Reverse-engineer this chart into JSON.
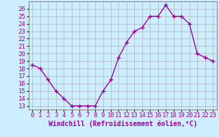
{
  "hours": [
    0,
    1,
    2,
    3,
    4,
    5,
    6,
    7,
    8,
    9,
    10,
    11,
    12,
    13,
    14,
    15,
    16,
    17,
    18,
    19,
    20,
    21,
    22,
    23
  ],
  "values": [
    18.5,
    18.0,
    16.5,
    15.0,
    14.0,
    13.0,
    13.0,
    13.0,
    13.0,
    15.0,
    16.5,
    19.5,
    21.5,
    23.0,
    23.5,
    25.0,
    25.0,
    26.5,
    25.0,
    25.0,
    24.0,
    20.0,
    19.5,
    19.0
  ],
  "line_color": "#990099",
  "marker": "+",
  "markersize": 4,
  "linewidth": 1.0,
  "background_color": "#cceeff",
  "grid_color": "#b0b0b0",
  "xlabel": "Windchill (Refroidissement éolien,°C)",
  "xlabel_fontsize": 7,
  "tick_fontsize": 6.5,
  "ylim_min": 12.5,
  "ylim_max": 27.0,
  "xlim_min": -0.5,
  "xlim_max": 23.5,
  "yticks": [
    13,
    14,
    15,
    16,
    17,
    18,
    19,
    20,
    21,
    22,
    23,
    24,
    25,
    26
  ],
  "xticks": [
    0,
    1,
    2,
    3,
    4,
    5,
    6,
    7,
    8,
    9,
    10,
    11,
    12,
    13,
    14,
    15,
    16,
    17,
    18,
    19,
    20,
    21,
    22,
    23
  ]
}
